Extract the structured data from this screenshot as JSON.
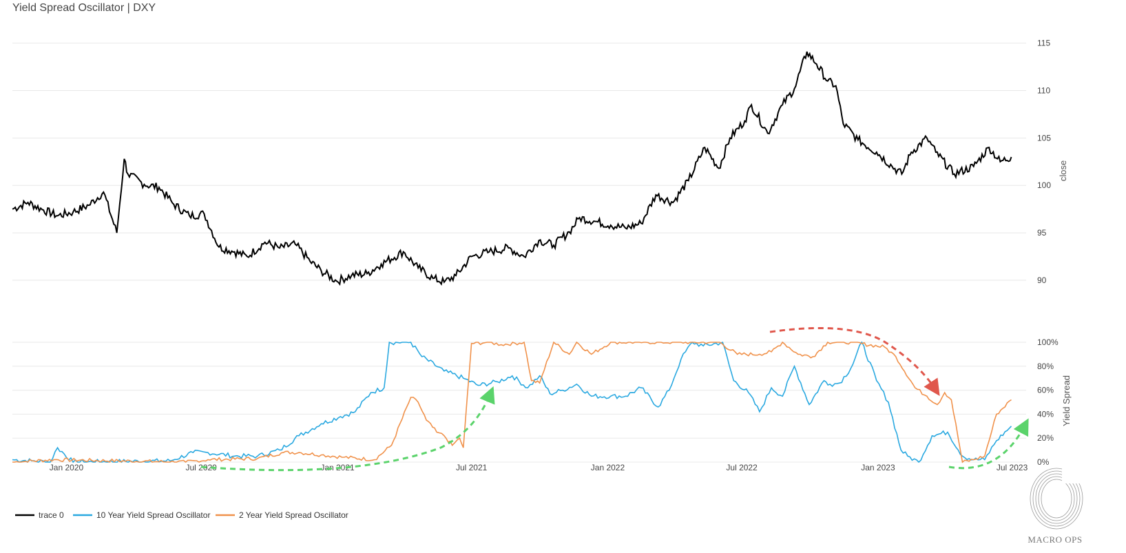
{
  "title": "Yield Spread Oscillator | DXY",
  "logo_text": "MACRO OPS",
  "colors": {
    "dxy": "#000000",
    "y10": "#29a8e0",
    "y2": "#f0914a",
    "green_arrow": "#5bd36b",
    "red_arrow": "#e0574c",
    "grid": "#e8e8e8"
  },
  "chart_data": [
    {
      "type": "line",
      "panel": "top",
      "ylabel": "close",
      "ylim": [
        86,
        116.5
      ],
      "yticks": [
        90,
        95,
        100,
        105,
        110,
        115
      ],
      "xlim": [
        "2019-10-20",
        "2023-07-20"
      ],
      "series": [
        {
          "name": "trace 0",
          "x": [
            "2019-10-20",
            "2019-11-10",
            "2019-12-01",
            "2019-12-20",
            "2020-01-10",
            "2020-01-31",
            "2020-02-20",
            "2020-03-09",
            "2020-03-19",
            "2020-03-24",
            "2020-04-15",
            "2020-05-05",
            "2020-05-25",
            "2020-06-15",
            "2020-07-05",
            "2020-07-25",
            "2020-08-15",
            "2020-09-01",
            "2020-09-25",
            "2020-10-15",
            "2020-11-05",
            "2020-11-25",
            "2020-12-10",
            "2020-12-31",
            "2021-01-20",
            "2021-02-10",
            "2021-03-01",
            "2021-03-31",
            "2021-04-20",
            "2021-05-10",
            "2021-05-25",
            "2021-06-10",
            "2021-07-01",
            "2021-07-25",
            "2021-08-20",
            "2021-09-10",
            "2021-09-30",
            "2021-10-20",
            "2021-11-10",
            "2021-11-24",
            "2021-12-15",
            "2022-01-05",
            "2022-01-25",
            "2022-02-15",
            "2022-03-07",
            "2022-03-30",
            "2022-04-20",
            "2022-05-12",
            "2022-05-31",
            "2022-06-15",
            "2022-07-05",
            "2022-07-14",
            "2022-08-05",
            "2022-08-25",
            "2022-09-10",
            "2022-09-27",
            "2022-10-10",
            "2022-10-25",
            "2022-11-05",
            "2022-11-15",
            "2022-12-05",
            "2022-12-30",
            "2023-01-20",
            "2023-02-02",
            "2023-02-15",
            "2023-03-08",
            "2023-03-20",
            "2023-04-14",
            "2023-05-10",
            "2023-05-31",
            "2023-06-15",
            "2023-06-30"
          ],
          "y": [
            97.5,
            98.2,
            97.4,
            96.8,
            97.2,
            97.9,
            99.3,
            95.0,
            102.8,
            101.2,
            100.1,
            99.8,
            98.0,
            96.8,
            97.0,
            93.5,
            93.0,
            92.5,
            94.0,
            93.4,
            93.8,
            92.0,
            91.0,
            89.9,
            90.5,
            90.7,
            91.7,
            93.0,
            91.3,
            90.2,
            89.8,
            90.5,
            92.5,
            93.0,
            93.4,
            92.5,
            94.2,
            93.7,
            95.1,
            96.6,
            96.2,
            95.8,
            95.5,
            96.0,
            99.0,
            98.2,
            100.5,
            104.0,
            101.8,
            105.0,
            106.8,
            108.5,
            105.5,
            108.5,
            110.2,
            114.1,
            112.8,
            111.0,
            110.5,
            106.5,
            104.8,
            103.5,
            102.0,
            101.2,
            103.5,
            105.0,
            103.5,
            101.2,
            102.0,
            104.0,
            102.5,
            103.0
          ]
        }
      ]
    },
    {
      "type": "line",
      "panel": "bottom",
      "ylabel": "Yield Spread",
      "ylim": [
        0,
        100
      ],
      "yticks": [
        "0%",
        "20%",
        "40%",
        "60%",
        "80%",
        "100%"
      ],
      "xticks": [
        "Jan 2020",
        "Jul 2020",
        "Jan 2021",
        "Jul 2021",
        "Jan 2022",
        "Jul 2022",
        "Jan 2023",
        "Jul 2023"
      ],
      "series": [
        {
          "name": "10 Year Yield Spread Oscillator",
          "x": [
            "2019-10-20",
            "2019-11-15",
            "2019-12-10",
            "2019-12-20",
            "2020-01-10",
            "2020-05-20",
            "2020-06-20",
            "2020-07-10",
            "2020-08-15",
            "2020-09-15",
            "2020-10-15",
            "2020-11-10",
            "2020-12-10",
            "2021-01-05",
            "2021-01-25",
            "2021-02-15",
            "2021-03-05",
            "2021-03-12",
            "2021-04-10",
            "2021-04-25",
            "2021-05-25",
            "2021-06-20",
            "2021-07-10",
            "2021-08-05",
            "2021-08-25",
            "2021-09-15",
            "2021-10-01",
            "2021-10-15",
            "2021-11-01",
            "2021-11-20",
            "2021-12-10",
            "2022-01-05",
            "2022-01-25",
            "2022-02-15",
            "2022-03-10",
            "2022-03-25",
            "2022-04-10",
            "2022-04-25",
            "2022-05-10",
            "2022-06-05",
            "2022-06-20",
            "2022-07-10",
            "2022-07-25",
            "2022-08-10",
            "2022-08-25",
            "2022-09-10",
            "2022-09-30",
            "2022-10-20",
            "2022-10-28",
            "2022-11-10",
            "2022-11-25",
            "2022-12-10",
            "2022-12-30",
            "2023-01-15",
            "2023-02-01",
            "2023-02-10",
            "2023-02-25",
            "2023-03-15",
            "2023-04-05",
            "2023-04-25",
            "2023-05-10",
            "2023-05-25",
            "2023-06-10",
            "2023-06-30"
          ],
          "y": [
            2,
            1,
            0,
            12,
            0,
            1,
            8,
            8,
            5,
            5,
            10,
            22,
            32,
            38,
            42,
            58,
            62,
            100,
            100,
            88,
            76,
            70,
            64,
            67,
            72,
            62,
            72,
            57,
            60,
            65,
            55,
            55,
            55,
            62,
            46,
            60,
            86,
            100,
            97,
            100,
            68,
            58,
            42,
            62,
            55,
            80,
            48,
            68,
            65,
            66,
            78,
            100,
            68,
            50,
            10,
            5,
            0,
            22,
            25,
            5,
            2,
            2,
            18,
            30
          ]
        },
        {
          "name": "2 Year Yield Spread Oscillator",
          "x": [
            "2019-10-20",
            "2019-12-15",
            "2020-06-10",
            "2020-07-10",
            "2020-09-15",
            "2020-10-20",
            "2020-11-10",
            "2020-12-10",
            "2021-01-10",
            "2021-02-20",
            "2021-03-15",
            "2021-04-10",
            "2021-04-20",
            "2021-05-01",
            "2021-05-15",
            "2021-05-25",
            "2021-06-05",
            "2021-06-15",
            "2021-06-20",
            "2021-07-01",
            "2021-07-25",
            "2021-08-10",
            "2021-09-10",
            "2021-09-20",
            "2021-10-01",
            "2021-10-20",
            "2021-11-10",
            "2021-11-20",
            "2021-12-10",
            "2022-01-05",
            "2022-04-10",
            "2022-06-01",
            "2022-06-25",
            "2022-07-25",
            "2022-08-10",
            "2022-08-25",
            "2022-09-15",
            "2022-10-05",
            "2022-10-25",
            "2022-11-10",
            "2022-11-25",
            "2023-01-10",
            "2023-01-25",
            "2023-02-20",
            "2023-03-08",
            "2023-03-22",
            "2023-04-01",
            "2023-04-10",
            "2023-04-25",
            "2023-05-10",
            "2023-05-25",
            "2023-06-10",
            "2023-06-30"
          ],
          "y": [
            0,
            2,
            0,
            2,
            3,
            8,
            8,
            6,
            4,
            2,
            14,
            54,
            50,
            35,
            25,
            22,
            14,
            20,
            12,
            99,
            100,
            98,
            100,
            68,
            66,
            100,
            90,
            100,
            90,
            100,
            100,
            100,
            90,
            90,
            92,
            100,
            90,
            88,
            100,
            100,
            100,
            96,
            88,
            62,
            55,
            48,
            58,
            52,
            0,
            2,
            5,
            40,
            52
          ]
        }
      ]
    }
  ],
  "legend": [
    {
      "label": "trace 0",
      "color": "#000000"
    },
    {
      "label": "10 Year Yield Spread Oscillator",
      "color": "#29a8e0"
    },
    {
      "label": "2 Year Yield Spread Oscillator",
      "color": "#f0914a"
    }
  ]
}
